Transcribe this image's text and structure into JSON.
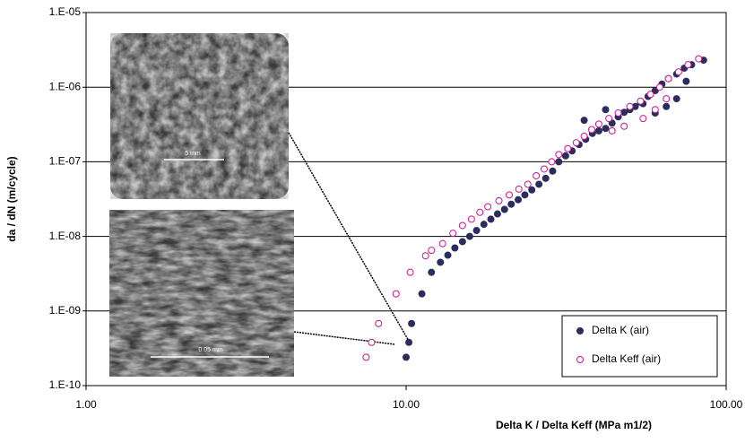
{
  "chart_data": {
    "type": "scatter",
    "x_label": "Delta K / Delta Keff  (MPa m1/2)",
    "y_label": "da / dN  (m/cycle)",
    "xlog": true,
    "ylog": true,
    "grid": "y",
    "legend": "lower right",
    "xlim": [
      1,
      100
    ],
    "xticks": [
      {
        "value": 1,
        "label": "1.00"
      },
      {
        "value": 10,
        "label": "10.00"
      },
      {
        "value": 100,
        "label": "100.00"
      }
    ],
    "ylim": [
      1e-10,
      1e-05
    ],
    "yticks": [
      {
        "value": 1e-10,
        "label": "1.E-10"
      },
      {
        "value": 1e-09,
        "label": "1.E-09"
      },
      {
        "value": 1e-08,
        "label": "1.E-08"
      },
      {
        "value": 1e-07,
        "label": "1.E-07"
      },
      {
        "value": 1e-06,
        "label": "1.E-06"
      },
      {
        "value": 1e-05,
        "label": "1.E-05"
      }
    ],
    "annotations": [
      "5 mm",
      "0.05 mm"
    ],
    "series": [
      {
        "name": "Delta K (air)",
        "color": "#2b2d5c",
        "marker": "filled",
        "x": [
          10.0,
          10.2,
          10.4,
          11.2,
          12.0,
          12.8,
          13.5,
          14.2,
          15.0,
          15.8,
          16.6,
          17.5,
          18.4,
          19.3,
          20.3,
          21.3,
          22.4,
          23.5,
          24.7,
          26,
          27.3,
          28.7,
          30,
          31.5,
          33,
          34.7,
          36.4,
          38.2,
          40,
          42,
          44,
          46,
          48,
          50,
          52,
          54,
          57,
          60,
          63,
          66,
          70,
          74,
          78,
          85,
          36,
          42,
          55,
          60,
          65,
          70,
          75
        ],
        "values": [
          2.4e-10,
          3.8e-10,
          6.8e-10,
          1.7e-09,
          3.3e-09,
          4.5e-09,
          5.6e-09,
          7e-09,
          8.5e-09,
          1e-08,
          1.2e-08,
          1.45e-08,
          1.7e-08,
          2e-08,
          2.3e-08,
          2.7e-08,
          3.1e-08,
          3.6e-08,
          4.2e-08,
          5e-08,
          6e-08,
          7.5e-08,
          1e-07,
          1.2e-07,
          1.4e-07,
          1.7e-07,
          2e-07,
          2.4e-07,
          2.6e-07,
          2.8e-07,
          3.3e-07,
          4e-07,
          4.6e-07,
          5e-07,
          5.5e-07,
          6.3e-07,
          7.5e-07,
          9e-07,
          1.1e-06,
          1.3e-06,
          1.5e-06,
          1.8e-06,
          2e-06,
          2.3e-06,
          3.6e-07,
          5e-07,
          6e-07,
          4.5e-07,
          5.5e-07,
          7e-07,
          1.2e-06
        ]
      },
      {
        "name": "Delta Keff (air)",
        "color": "#d0108c",
        "marker": "open",
        "x": [
          7.5,
          7.8,
          8.2,
          9.3,
          10.3,
          11.5,
          12,
          13,
          14,
          15,
          16,
          17,
          18,
          19.5,
          21,
          22.5,
          24,
          25.5,
          27,
          28.5,
          30,
          32,
          34,
          36,
          38,
          40,
          43,
          46,
          50,
          54,
          58,
          62,
          66,
          71,
          76,
          82,
          44,
          48,
          55,
          60,
          65
        ],
        "values": [
          2.4e-10,
          3.8e-10,
          6.8e-10,
          1.7e-09,
          3.3e-09,
          5.5e-09,
          6.5e-09,
          8e-09,
          1.1e-08,
          1.4e-08,
          1.7e-08,
          2.1e-08,
          2.5e-08,
          3e-08,
          3.6e-08,
          4.3e-08,
          5e-08,
          6.5e-08,
          8e-08,
          1e-07,
          1.25e-07,
          1.5e-07,
          1.8e-07,
          2.2e-07,
          2.7e-07,
          3.2e-07,
          3.8e-07,
          4.5e-07,
          5.5e-07,
          6.5e-07,
          8e-07,
          1e-06,
          1.3e-06,
          1.6e-06,
          2e-06,
          2.4e-06,
          2.6e-07,
          3e-07,
          3.8e-07,
          5e-07,
          7e-07
        ]
      }
    ]
  }
}
